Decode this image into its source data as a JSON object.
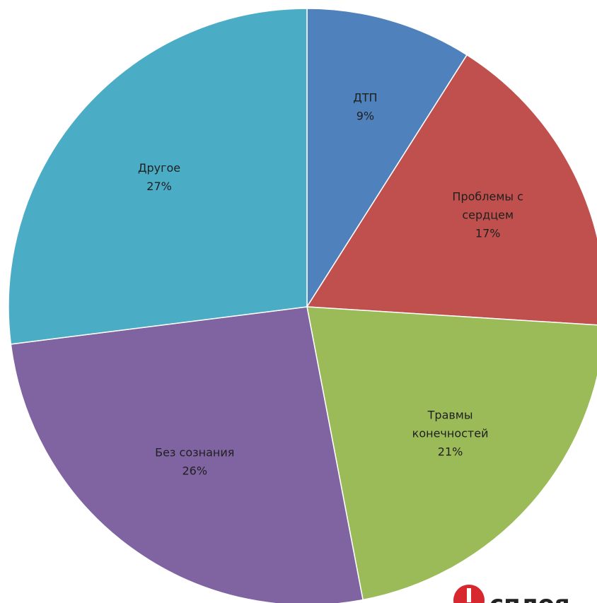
{
  "chart_data": {
    "type": "pie",
    "title": "",
    "start_angle_deg": 0,
    "direction": "clockwise",
    "slices": [
      {
        "name": "ДТП",
        "label_lines": [
          "ДТП",
          "9%"
        ],
        "value": 9,
        "color": "#4f81bd"
      },
      {
        "name": "Проблемы с сердцем",
        "label_lines": [
          "Проблемы с",
          "сердцем",
          "17%"
        ],
        "value": 17,
        "color": "#c0504d"
      },
      {
        "name": "Травмы конечностей",
        "label_lines": [
          "Травмы",
          "конечностей",
          "21%"
        ],
        "value": 21,
        "color": "#9bbb59"
      },
      {
        "name": "Без сознания",
        "label_lines": [
          "Без сознания",
          "26%"
        ],
        "value": 26,
        "color": "#8064a2"
      },
      {
        "name": "Другое",
        "label_lines": [
          "Другое",
          "27%"
        ],
        "value": 27,
        "color": "#4bacc6"
      }
    ]
  },
  "watermark": {
    "text": "сплоя",
    "icon": "brand-logo-icon",
    "icon_color": "#d7282f"
  }
}
